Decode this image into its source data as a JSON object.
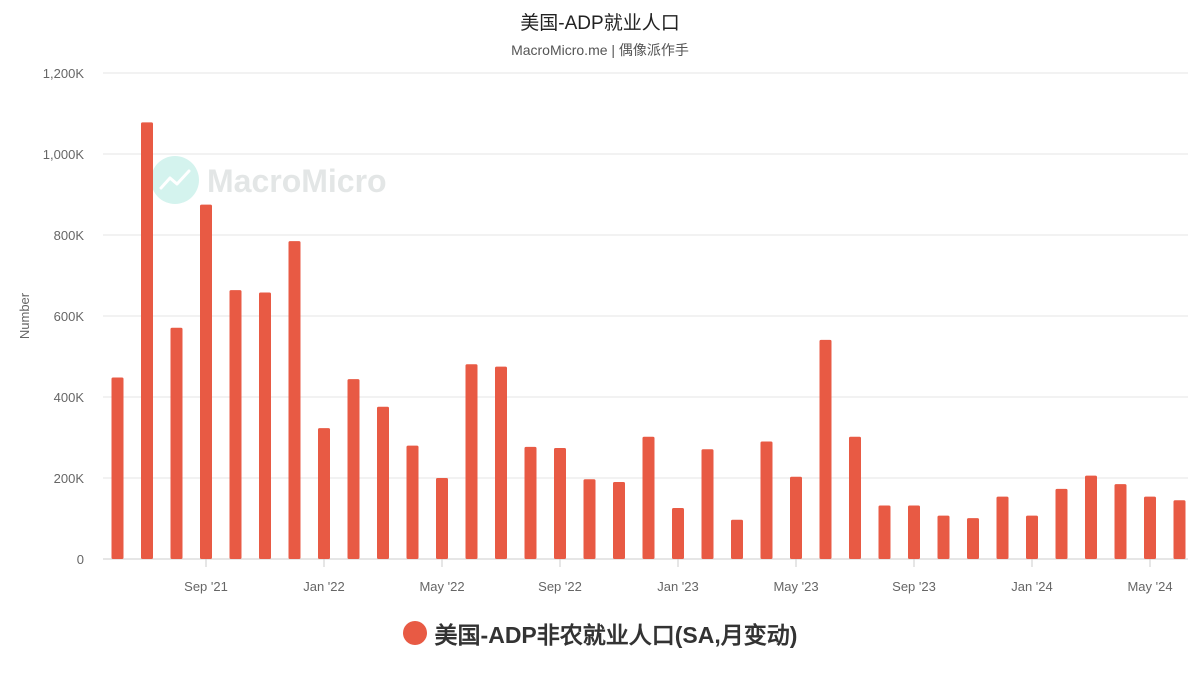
{
  "header": {
    "title": "美国-ADP就业人口",
    "subtitle": "MacroMicro.me | 偶像派作手"
  },
  "watermark": {
    "text": "MacroMicro"
  },
  "colors": {
    "bar": "#e85a44",
    "grid": "#e6e6e6",
    "watermark_circle": "#d4f3ee"
  },
  "chart_data": {
    "type": "bar",
    "ylabel": "Number",
    "ylim": [
      0,
      1200000
    ],
    "yticks": [
      0,
      200000,
      400000,
      600000,
      800000,
      1000000,
      1200000
    ],
    "ytick_labels": [
      "0",
      "200K",
      "400K",
      "600K",
      "800K",
      "1,000K",
      "1,200K"
    ],
    "xtick_labels": [
      {
        "label": "Sep '21",
        "index": 3
      },
      {
        "label": "Jan '22",
        "index": 7
      },
      {
        "label": "May '22",
        "index": 11
      },
      {
        "label": "Sep '22",
        "index": 15
      },
      {
        "label": "Jan '23",
        "index": 19
      },
      {
        "label": "May '23",
        "index": 23
      },
      {
        "label": "Sep '23",
        "index": 27
      },
      {
        "label": "Jan '24",
        "index": 31
      },
      {
        "label": "May '24",
        "index": 35
      }
    ],
    "categories": [
      "Jun '21",
      "Jul '21",
      "Aug '21",
      "Sep '21",
      "Oct '21",
      "Nov '21",
      "Dec '21",
      "Jan '22",
      "Feb '22",
      "Mar '22",
      "Apr '22",
      "May '22",
      "Jun '22",
      "Jul '22",
      "Aug '22",
      "Sep '22",
      "Oct '22",
      "Nov '22",
      "Dec '22",
      "Jan '23",
      "Feb '23",
      "Mar '23",
      "Apr '23",
      "May '23",
      "Jun '23",
      "Jul '23",
      "Aug '23",
      "Sep '23",
      "Oct '23",
      "Nov '23",
      "Dec '23",
      "Jan '24",
      "Feb '24",
      "Mar '24",
      "Apr '24",
      "May '24",
      "Jun '24"
    ],
    "grid": true,
    "legend_position": "bottom-center",
    "series": [
      {
        "name": "美国-ADP非农就业人口(SA,月变动)",
        "color": "#e85a44",
        "values": [
          448000,
          1078000,
          571000,
          875000,
          664000,
          658000,
          785000,
          323000,
          444000,
          376000,
          280000,
          200000,
          481000,
          475000,
          277000,
          274000,
          197000,
          190000,
          302000,
          126000,
          271000,
          97000,
          290000,
          203000,
          541000,
          302000,
          132000,
          132000,
          107000,
          101000,
          154000,
          107000,
          173000,
          206000,
          185000,
          154000,
          145000
        ]
      }
    ]
  }
}
